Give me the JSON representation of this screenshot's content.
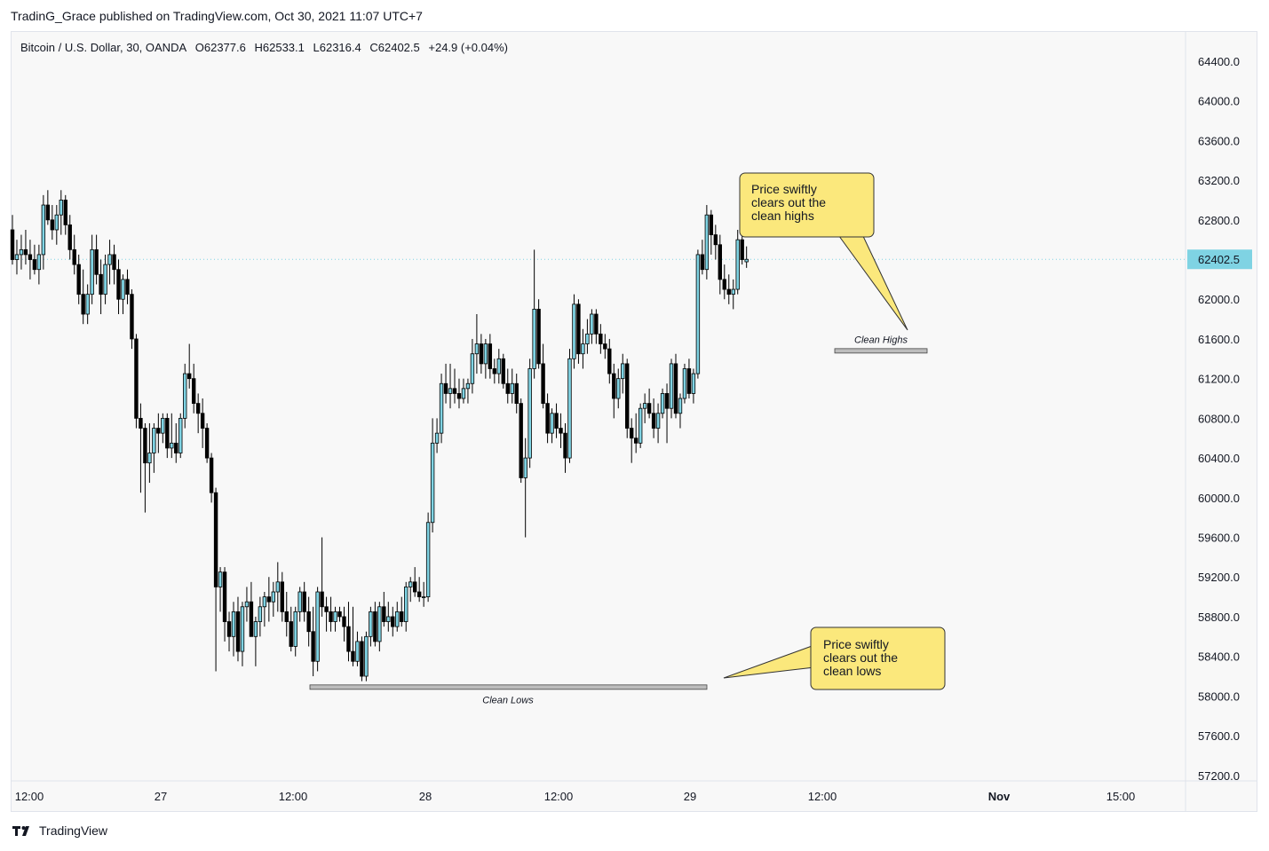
{
  "header": {
    "publisher_line": "TradinG_Grace published on TradingView.com, Oct 30, 2021 11:07 UTC+7"
  },
  "legend": {
    "symbol": "Bitcoin / U.S. Dollar, 30, OANDA",
    "open": "O62377.6",
    "high": "H62533.1",
    "low": "L62316.4",
    "close": "C62402.5",
    "change": "+24.9 (+0.04%)"
  },
  "brand": {
    "name": "TradingView"
  },
  "colors": {
    "up_fill": "#7fd3e3",
    "down_fill": "#000000",
    "wick": "#000000",
    "last_price_bg": "#7fd3e3",
    "callout_fill": "#fbe87c",
    "callout_border": "#333333",
    "level_line": "#bdbdbd"
  },
  "chart_data": {
    "type": "candlestick",
    "interval_minutes": 30,
    "ylim": [
      57100,
      64650
    ],
    "y_ticks": [
      "64400.0",
      "64000.0",
      "63600.0",
      "63200.0",
      "62800.0",
      "62400.0",
      "62000.0",
      "61600.0",
      "61200.0",
      "60800.0",
      "60400.0",
      "60000.0",
      "59600.0",
      "59200.0",
      "58800.0",
      "58400.0",
      "58000.0",
      "57600.0",
      "57200.0"
    ],
    "x_ticks": [
      "12:00",
      "27",
      "12:00",
      "28",
      "12:00",
      "29",
      "12:00",
      "Nov",
      "15:00"
    ],
    "last_price": "62402.5",
    "last_price_value": 62402.5,
    "candles": [
      {
        "o": 62700,
        "h": 62850,
        "l": 62350,
        "c": 62400
      },
      {
        "o": 62400,
        "h": 62600,
        "l": 62250,
        "c": 62450
      },
      {
        "o": 62450,
        "h": 62650,
        "l": 62300,
        "c": 62500
      },
      {
        "o": 62500,
        "h": 62700,
        "l": 62350,
        "c": 62450
      },
      {
        "o": 62450,
        "h": 62600,
        "l": 62200,
        "c": 62400
      },
      {
        "o": 62400,
        "h": 62550,
        "l": 62250,
        "c": 62300
      },
      {
        "o": 62300,
        "h": 62550,
        "l": 62150,
        "c": 62450
      },
      {
        "o": 62450,
        "h": 63050,
        "l": 62300,
        "c": 62950
      },
      {
        "o": 62950,
        "h": 63100,
        "l": 62750,
        "c": 62800
      },
      {
        "o": 62800,
        "h": 62950,
        "l": 62600,
        "c": 62700
      },
      {
        "o": 62700,
        "h": 62950,
        "l": 62550,
        "c": 62850
      },
      {
        "o": 62850,
        "h": 63100,
        "l": 62650,
        "c": 63000
      },
      {
        "o": 63000,
        "h": 63050,
        "l": 62650,
        "c": 62750
      },
      {
        "o": 62750,
        "h": 62850,
        "l": 62400,
        "c": 62500
      },
      {
        "o": 62500,
        "h": 62650,
        "l": 62250,
        "c": 62350
      },
      {
        "o": 62350,
        "h": 62450,
        "l": 61950,
        "c": 62050
      },
      {
        "o": 62050,
        "h": 62300,
        "l": 61750,
        "c": 61850
      },
      {
        "o": 61850,
        "h": 62150,
        "l": 61750,
        "c": 62050
      },
      {
        "o": 62050,
        "h": 62650,
        "l": 61950,
        "c": 62500
      },
      {
        "o": 62500,
        "h": 62650,
        "l": 62150,
        "c": 62250
      },
      {
        "o": 62250,
        "h": 62400,
        "l": 61850,
        "c": 62050
      },
      {
        "o": 62050,
        "h": 62450,
        "l": 61950,
        "c": 62350
      },
      {
        "o": 62350,
        "h": 62600,
        "l": 62150,
        "c": 62450
      },
      {
        "o": 62450,
        "h": 62550,
        "l": 62150,
        "c": 62300
      },
      {
        "o": 62300,
        "h": 62400,
        "l": 61850,
        "c": 62000
      },
      {
        "o": 62000,
        "h": 62250,
        "l": 61850,
        "c": 62200
      },
      {
        "o": 62200,
        "h": 62300,
        "l": 61950,
        "c": 62050
      },
      {
        "o": 62050,
        "h": 62100,
        "l": 61500,
        "c": 61600
      },
      {
        "o": 61600,
        "h": 61650,
        "l": 60700,
        "c": 60800
      },
      {
        "o": 60800,
        "h": 60950,
        "l": 60050,
        "c": 60700
      },
      {
        "o": 60700,
        "h": 60750,
        "l": 59850,
        "c": 60350
      },
      {
        "o": 60350,
        "h": 60750,
        "l": 60150,
        "c": 60450
      },
      {
        "o": 60450,
        "h": 60750,
        "l": 60250,
        "c": 60700
      },
      {
        "o": 60700,
        "h": 60850,
        "l": 60450,
        "c": 60650
      },
      {
        "o": 60650,
        "h": 60850,
        "l": 60550,
        "c": 60800
      },
      {
        "o": 60800,
        "h": 60850,
        "l": 60400,
        "c": 60500
      },
      {
        "o": 60500,
        "h": 60850,
        "l": 60400,
        "c": 60550
      },
      {
        "o": 60550,
        "h": 60750,
        "l": 60350,
        "c": 60450
      },
      {
        "o": 60450,
        "h": 60850,
        "l": 60400,
        "c": 60800
      },
      {
        "o": 60800,
        "h": 61350,
        "l": 60700,
        "c": 61250
      },
      {
        "o": 61250,
        "h": 61550,
        "l": 61100,
        "c": 61200
      },
      {
        "o": 61200,
        "h": 61350,
        "l": 60850,
        "c": 60950
      },
      {
        "o": 60950,
        "h": 61050,
        "l": 60650,
        "c": 60850
      },
      {
        "o": 60850,
        "h": 61000,
        "l": 60500,
        "c": 60700
      },
      {
        "o": 60700,
        "h": 60750,
        "l": 60350,
        "c": 60400
      },
      {
        "o": 60400,
        "h": 60450,
        "l": 59950,
        "c": 60050
      },
      {
        "o": 60050,
        "h": 60100,
        "l": 58250,
        "c": 59100
      },
      {
        "o": 59100,
        "h": 59300,
        "l": 58850,
        "c": 59250
      },
      {
        "o": 59250,
        "h": 59300,
        "l": 58550,
        "c": 58750
      },
      {
        "o": 58750,
        "h": 58850,
        "l": 58450,
        "c": 58600
      },
      {
        "o": 58600,
        "h": 58950,
        "l": 58400,
        "c": 58850
      },
      {
        "o": 58850,
        "h": 59000,
        "l": 58350,
        "c": 58450
      },
      {
        "o": 58450,
        "h": 58950,
        "l": 58300,
        "c": 58900
      },
      {
        "o": 58900,
        "h": 59100,
        "l": 58750,
        "c": 58950
      },
      {
        "o": 58950,
        "h": 59150,
        "l": 58600,
        "c": 58600
      },
      {
        "o": 58600,
        "h": 58800,
        "l": 58300,
        "c": 58750
      },
      {
        "o": 58750,
        "h": 59000,
        "l": 58600,
        "c": 58900
      },
      {
        "o": 58900,
        "h": 59050,
        "l": 58700,
        "c": 59000
      },
      {
        "o": 59000,
        "h": 59200,
        "l": 58750,
        "c": 58950
      },
      {
        "o": 58950,
        "h": 59150,
        "l": 58800,
        "c": 59050
      },
      {
        "o": 59050,
        "h": 59350,
        "l": 58850,
        "c": 59150
      },
      {
        "o": 59150,
        "h": 59250,
        "l": 58750,
        "c": 58850
      },
      {
        "o": 58850,
        "h": 59050,
        "l": 58600,
        "c": 58750
      },
      {
        "o": 58750,
        "h": 58900,
        "l": 58450,
        "c": 58500
      },
      {
        "o": 58500,
        "h": 58900,
        "l": 58400,
        "c": 58850
      },
      {
        "o": 58850,
        "h": 59100,
        "l": 58750,
        "c": 59050
      },
      {
        "o": 59050,
        "h": 59150,
        "l": 58750,
        "c": 58850
      },
      {
        "o": 58850,
        "h": 59000,
        "l": 58500,
        "c": 58650
      },
      {
        "o": 58650,
        "h": 58900,
        "l": 58200,
        "c": 58350
      },
      {
        "o": 58350,
        "h": 59100,
        "l": 58250,
        "c": 59050
      },
      {
        "o": 59050,
        "h": 59600,
        "l": 58800,
        "c": 58900
      },
      {
        "o": 58900,
        "h": 59000,
        "l": 58650,
        "c": 58850
      },
      {
        "o": 58850,
        "h": 59000,
        "l": 58650,
        "c": 58750
      },
      {
        "o": 58750,
        "h": 58900,
        "l": 58650,
        "c": 58850
      },
      {
        "o": 58850,
        "h": 58900,
        "l": 58750,
        "c": 58800
      },
      {
        "o": 58800,
        "h": 58900,
        "l": 58550,
        "c": 58700
      },
      {
        "o": 58700,
        "h": 58950,
        "l": 58350,
        "c": 58450
      },
      {
        "o": 58450,
        "h": 58900,
        "l": 58300,
        "c": 58350
      },
      {
        "o": 58350,
        "h": 58650,
        "l": 58300,
        "c": 58550
      },
      {
        "o": 58550,
        "h": 58600,
        "l": 58150,
        "c": 58200
      },
      {
        "o": 58200,
        "h": 58650,
        "l": 58150,
        "c": 58600
      },
      {
        "o": 58600,
        "h": 58900,
        "l": 58500,
        "c": 58850
      },
      {
        "o": 58850,
        "h": 58950,
        "l": 58500,
        "c": 58550
      },
      {
        "o": 58550,
        "h": 58950,
        "l": 58450,
        "c": 58900
      },
      {
        "o": 58900,
        "h": 59050,
        "l": 58700,
        "c": 58750
      },
      {
        "o": 58750,
        "h": 58950,
        "l": 58650,
        "c": 58800
      },
      {
        "o": 58800,
        "h": 58900,
        "l": 58600,
        "c": 58700
      },
      {
        "o": 58700,
        "h": 58950,
        "l": 58650,
        "c": 58850
      },
      {
        "o": 58850,
        "h": 59000,
        "l": 58700,
        "c": 58750
      },
      {
        "o": 58750,
        "h": 59150,
        "l": 58650,
        "c": 59100
      },
      {
        "o": 59100,
        "h": 59200,
        "l": 58950,
        "c": 59150
      },
      {
        "o": 59150,
        "h": 59300,
        "l": 59000,
        "c": 59050
      },
      {
        "o": 59050,
        "h": 59200,
        "l": 58950,
        "c": 59000
      },
      {
        "o": 59000,
        "h": 59150,
        "l": 58900,
        "c": 59000
      },
      {
        "o": 59000,
        "h": 59850,
        "l": 58950,
        "c": 59750
      },
      {
        "o": 59750,
        "h": 60800,
        "l": 59650,
        "c": 60550
      },
      {
        "o": 60550,
        "h": 60800,
        "l": 60450,
        "c": 60650
      },
      {
        "o": 60650,
        "h": 61250,
        "l": 60550,
        "c": 61150
      },
      {
        "o": 61150,
        "h": 61350,
        "l": 60950,
        "c": 61050
      },
      {
        "o": 61050,
        "h": 61350,
        "l": 60900,
        "c": 61100
      },
      {
        "o": 61100,
        "h": 61300,
        "l": 60950,
        "c": 61050
      },
      {
        "o": 61050,
        "h": 61200,
        "l": 60900,
        "c": 61000
      },
      {
        "o": 61000,
        "h": 61200,
        "l": 60950,
        "c": 61100
      },
      {
        "o": 61100,
        "h": 61200,
        "l": 60950,
        "c": 61150
      },
      {
        "o": 61150,
        "h": 61600,
        "l": 61050,
        "c": 61450
      },
      {
        "o": 61450,
        "h": 61850,
        "l": 61250,
        "c": 61550
      },
      {
        "o": 61550,
        "h": 61650,
        "l": 61250,
        "c": 61350
      },
      {
        "o": 61350,
        "h": 61600,
        "l": 61200,
        "c": 61550
      },
      {
        "o": 61550,
        "h": 61650,
        "l": 61200,
        "c": 61300
      },
      {
        "o": 61300,
        "h": 61400,
        "l": 61150,
        "c": 61250
      },
      {
        "o": 61250,
        "h": 61500,
        "l": 61150,
        "c": 61400
      },
      {
        "o": 61400,
        "h": 61450,
        "l": 61100,
        "c": 61150
      },
      {
        "o": 61150,
        "h": 61300,
        "l": 60950,
        "c": 61050
      },
      {
        "o": 61050,
        "h": 61300,
        "l": 60950,
        "c": 61150
      },
      {
        "o": 61150,
        "h": 61250,
        "l": 60850,
        "c": 60950
      },
      {
        "o": 60950,
        "h": 61000,
        "l": 60150,
        "c": 60200
      },
      {
        "o": 60200,
        "h": 60600,
        "l": 59600,
        "c": 60400
      },
      {
        "o": 60400,
        "h": 61400,
        "l": 60300,
        "c": 61300
      },
      {
        "o": 61300,
        "h": 62500,
        "l": 61200,
        "c": 61900
      },
      {
        "o": 61900,
        "h": 62000,
        "l": 61300,
        "c": 61350
      },
      {
        "o": 61350,
        "h": 61550,
        "l": 60900,
        "c": 60950
      },
      {
        "o": 60950,
        "h": 61050,
        "l": 60550,
        "c": 60650
      },
      {
        "o": 60650,
        "h": 60900,
        "l": 60550,
        "c": 60850
      },
      {
        "o": 60850,
        "h": 60950,
        "l": 60600,
        "c": 60700
      },
      {
        "o": 60700,
        "h": 60850,
        "l": 60500,
        "c": 60650
      },
      {
        "o": 60650,
        "h": 60750,
        "l": 60250,
        "c": 60400
      },
      {
        "o": 60400,
        "h": 61500,
        "l": 60350,
        "c": 61400
      },
      {
        "o": 61400,
        "h": 62050,
        "l": 61300,
        "c": 61950
      },
      {
        "o": 61950,
        "h": 62000,
        "l": 61350,
        "c": 61450
      },
      {
        "o": 61450,
        "h": 61700,
        "l": 61300,
        "c": 61550
      },
      {
        "o": 61550,
        "h": 61800,
        "l": 61450,
        "c": 61650
      },
      {
        "o": 61650,
        "h": 61900,
        "l": 61550,
        "c": 61850
      },
      {
        "o": 61850,
        "h": 61900,
        "l": 61550,
        "c": 61650
      },
      {
        "o": 61650,
        "h": 61750,
        "l": 61450,
        "c": 61550
      },
      {
        "o": 61550,
        "h": 61650,
        "l": 61400,
        "c": 61500
      },
      {
        "o": 61500,
        "h": 61600,
        "l": 61150,
        "c": 61250
      },
      {
        "o": 61250,
        "h": 61350,
        "l": 60800,
        "c": 61000
      },
      {
        "o": 61000,
        "h": 61300,
        "l": 60900,
        "c": 61200
      },
      {
        "o": 61200,
        "h": 61450,
        "l": 61050,
        "c": 61350
      },
      {
        "o": 61350,
        "h": 61400,
        "l": 60600,
        "c": 60700
      },
      {
        "o": 60700,
        "h": 60800,
        "l": 60350,
        "c": 60600
      },
      {
        "o": 60600,
        "h": 60850,
        "l": 60450,
        "c": 60550
      },
      {
        "o": 60550,
        "h": 60950,
        "l": 60500,
        "c": 60900
      },
      {
        "o": 60900,
        "h": 61050,
        "l": 60750,
        "c": 60950
      },
      {
        "o": 60950,
        "h": 61100,
        "l": 60800,
        "c": 60850
      },
      {
        "o": 60850,
        "h": 61000,
        "l": 60600,
        "c": 60700
      },
      {
        "o": 60700,
        "h": 60950,
        "l": 60550,
        "c": 60850
      },
      {
        "o": 60850,
        "h": 61100,
        "l": 60800,
        "c": 61050
      },
      {
        "o": 61050,
        "h": 61150,
        "l": 60550,
        "c": 60900
      },
      {
        "o": 60900,
        "h": 61400,
        "l": 60800,
        "c": 61350
      },
      {
        "o": 61350,
        "h": 61450,
        "l": 60800,
        "c": 60850
      },
      {
        "o": 60850,
        "h": 61050,
        "l": 60700,
        "c": 61000
      },
      {
        "o": 61000,
        "h": 61350,
        "l": 60950,
        "c": 61300
      },
      {
        "o": 61300,
        "h": 61400,
        "l": 61000,
        "c": 61050
      },
      {
        "o": 61050,
        "h": 61300,
        "l": 60950,
        "c": 61250
      },
      {
        "o": 61250,
        "h": 62500,
        "l": 61200,
        "c": 62450
      },
      {
        "o": 62450,
        "h": 62600,
        "l": 62250,
        "c": 62300
      },
      {
        "o": 62300,
        "h": 62950,
        "l": 62200,
        "c": 62850
      },
      {
        "o": 62850,
        "h": 62900,
        "l": 62450,
        "c": 62650
      },
      {
        "o": 62650,
        "h": 62750,
        "l": 62400,
        "c": 62550
      },
      {
        "o": 62550,
        "h": 62650,
        "l": 62050,
        "c": 62200
      },
      {
        "o": 62200,
        "h": 62350,
        "l": 62000,
        "c": 62100
      },
      {
        "o": 62100,
        "h": 62250,
        "l": 61950,
        "c": 62050
      },
      {
        "o": 62050,
        "h": 62200,
        "l": 61900,
        "c": 62100
      },
      {
        "o": 62100,
        "h": 62700,
        "l": 62050,
        "c": 62600
      },
      {
        "o": 62600,
        "h": 62650,
        "l": 62350,
        "c": 62400
      },
      {
        "o": 62377.6,
        "h": 62533.1,
        "l": 62316.4,
        "c": 62402.5
      }
    ],
    "annotations": [
      {
        "type": "callout",
        "text": [
          "Price swiftly",
          "clears out the",
          "clean highs"
        ]
      },
      {
        "type": "callout",
        "text": [
          "Price swiftly",
          "clears out the",
          "clean lows"
        ]
      },
      {
        "type": "level",
        "label": "Clean Highs",
        "price": 61480
      },
      {
        "type": "level",
        "label": "Clean Lows",
        "price": 58090
      }
    ]
  }
}
